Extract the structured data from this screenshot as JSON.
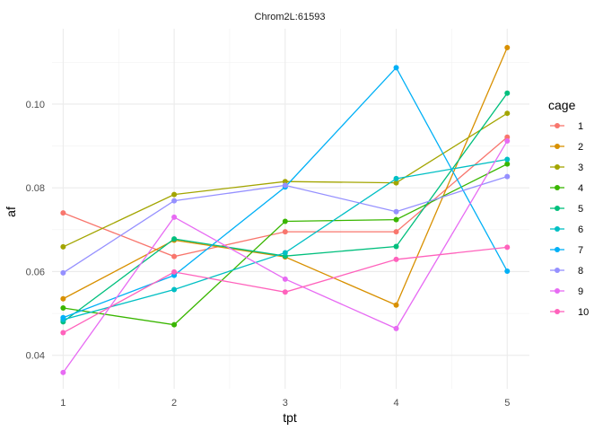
{
  "chart_data": {
    "type": "line",
    "title": "Chrom2L:61593",
    "xlabel": "tpt",
    "ylabel": "af",
    "x": [
      1,
      2,
      3,
      4,
      5
    ],
    "xlim": [
      0.9,
      5.2
    ],
    "ylim": [
      0.032,
      0.118
    ],
    "y_ticks": [
      0.04,
      0.06,
      0.08,
      0.1
    ],
    "y_tick_labels": [
      "0.04",
      "0.06",
      "0.08",
      "0.10"
    ],
    "x_ticks": [
      1,
      2,
      3,
      4,
      5
    ],
    "x_tick_labels": [
      "1",
      "2",
      "3",
      "4",
      "5"
    ],
    "grid": true,
    "legend_title": "cage",
    "legend_position": "right",
    "series": [
      {
        "name": "1",
        "color": "#F8766D",
        "values": [
          0.074,
          0.0636,
          0.0695,
          0.0695,
          0.0921
        ]
      },
      {
        "name": "2",
        "color": "#D89000",
        "values": [
          0.0535,
          0.0675,
          0.0635,
          0.052,
          0.1135
        ]
      },
      {
        "name": "3",
        "color": "#A3A500",
        "values": [
          0.0659,
          0.0784,
          0.0815,
          0.0812,
          0.0978
        ]
      },
      {
        "name": "4",
        "color": "#39B600",
        "values": [
          0.0513,
          0.0473,
          0.072,
          0.0724,
          0.0857
        ]
      },
      {
        "name": "5",
        "color": "#00BF7D",
        "values": [
          0.048,
          0.0678,
          0.0637,
          0.066,
          0.1026
        ]
      },
      {
        "name": "6",
        "color": "#00BFC4",
        "values": [
          0.0485,
          0.0557,
          0.0645,
          0.0822,
          0.0868
        ]
      },
      {
        "name": "7",
        "color": "#00B0F6",
        "values": [
          0.049,
          0.0591,
          0.0802,
          0.1087,
          0.0601
        ]
      },
      {
        "name": "8",
        "color": "#9590FF",
        "values": [
          0.0597,
          0.0769,
          0.0806,
          0.0743,
          0.0827
        ]
      },
      {
        "name": "9",
        "color": "#E76BF3",
        "values": [
          0.0359,
          0.073,
          0.0582,
          0.0464,
          0.0912
        ]
      },
      {
        "name": "10",
        "color": "#FF62BC",
        "values": [
          0.0454,
          0.0599,
          0.0551,
          0.0629,
          0.0658
        ]
      }
    ]
  }
}
